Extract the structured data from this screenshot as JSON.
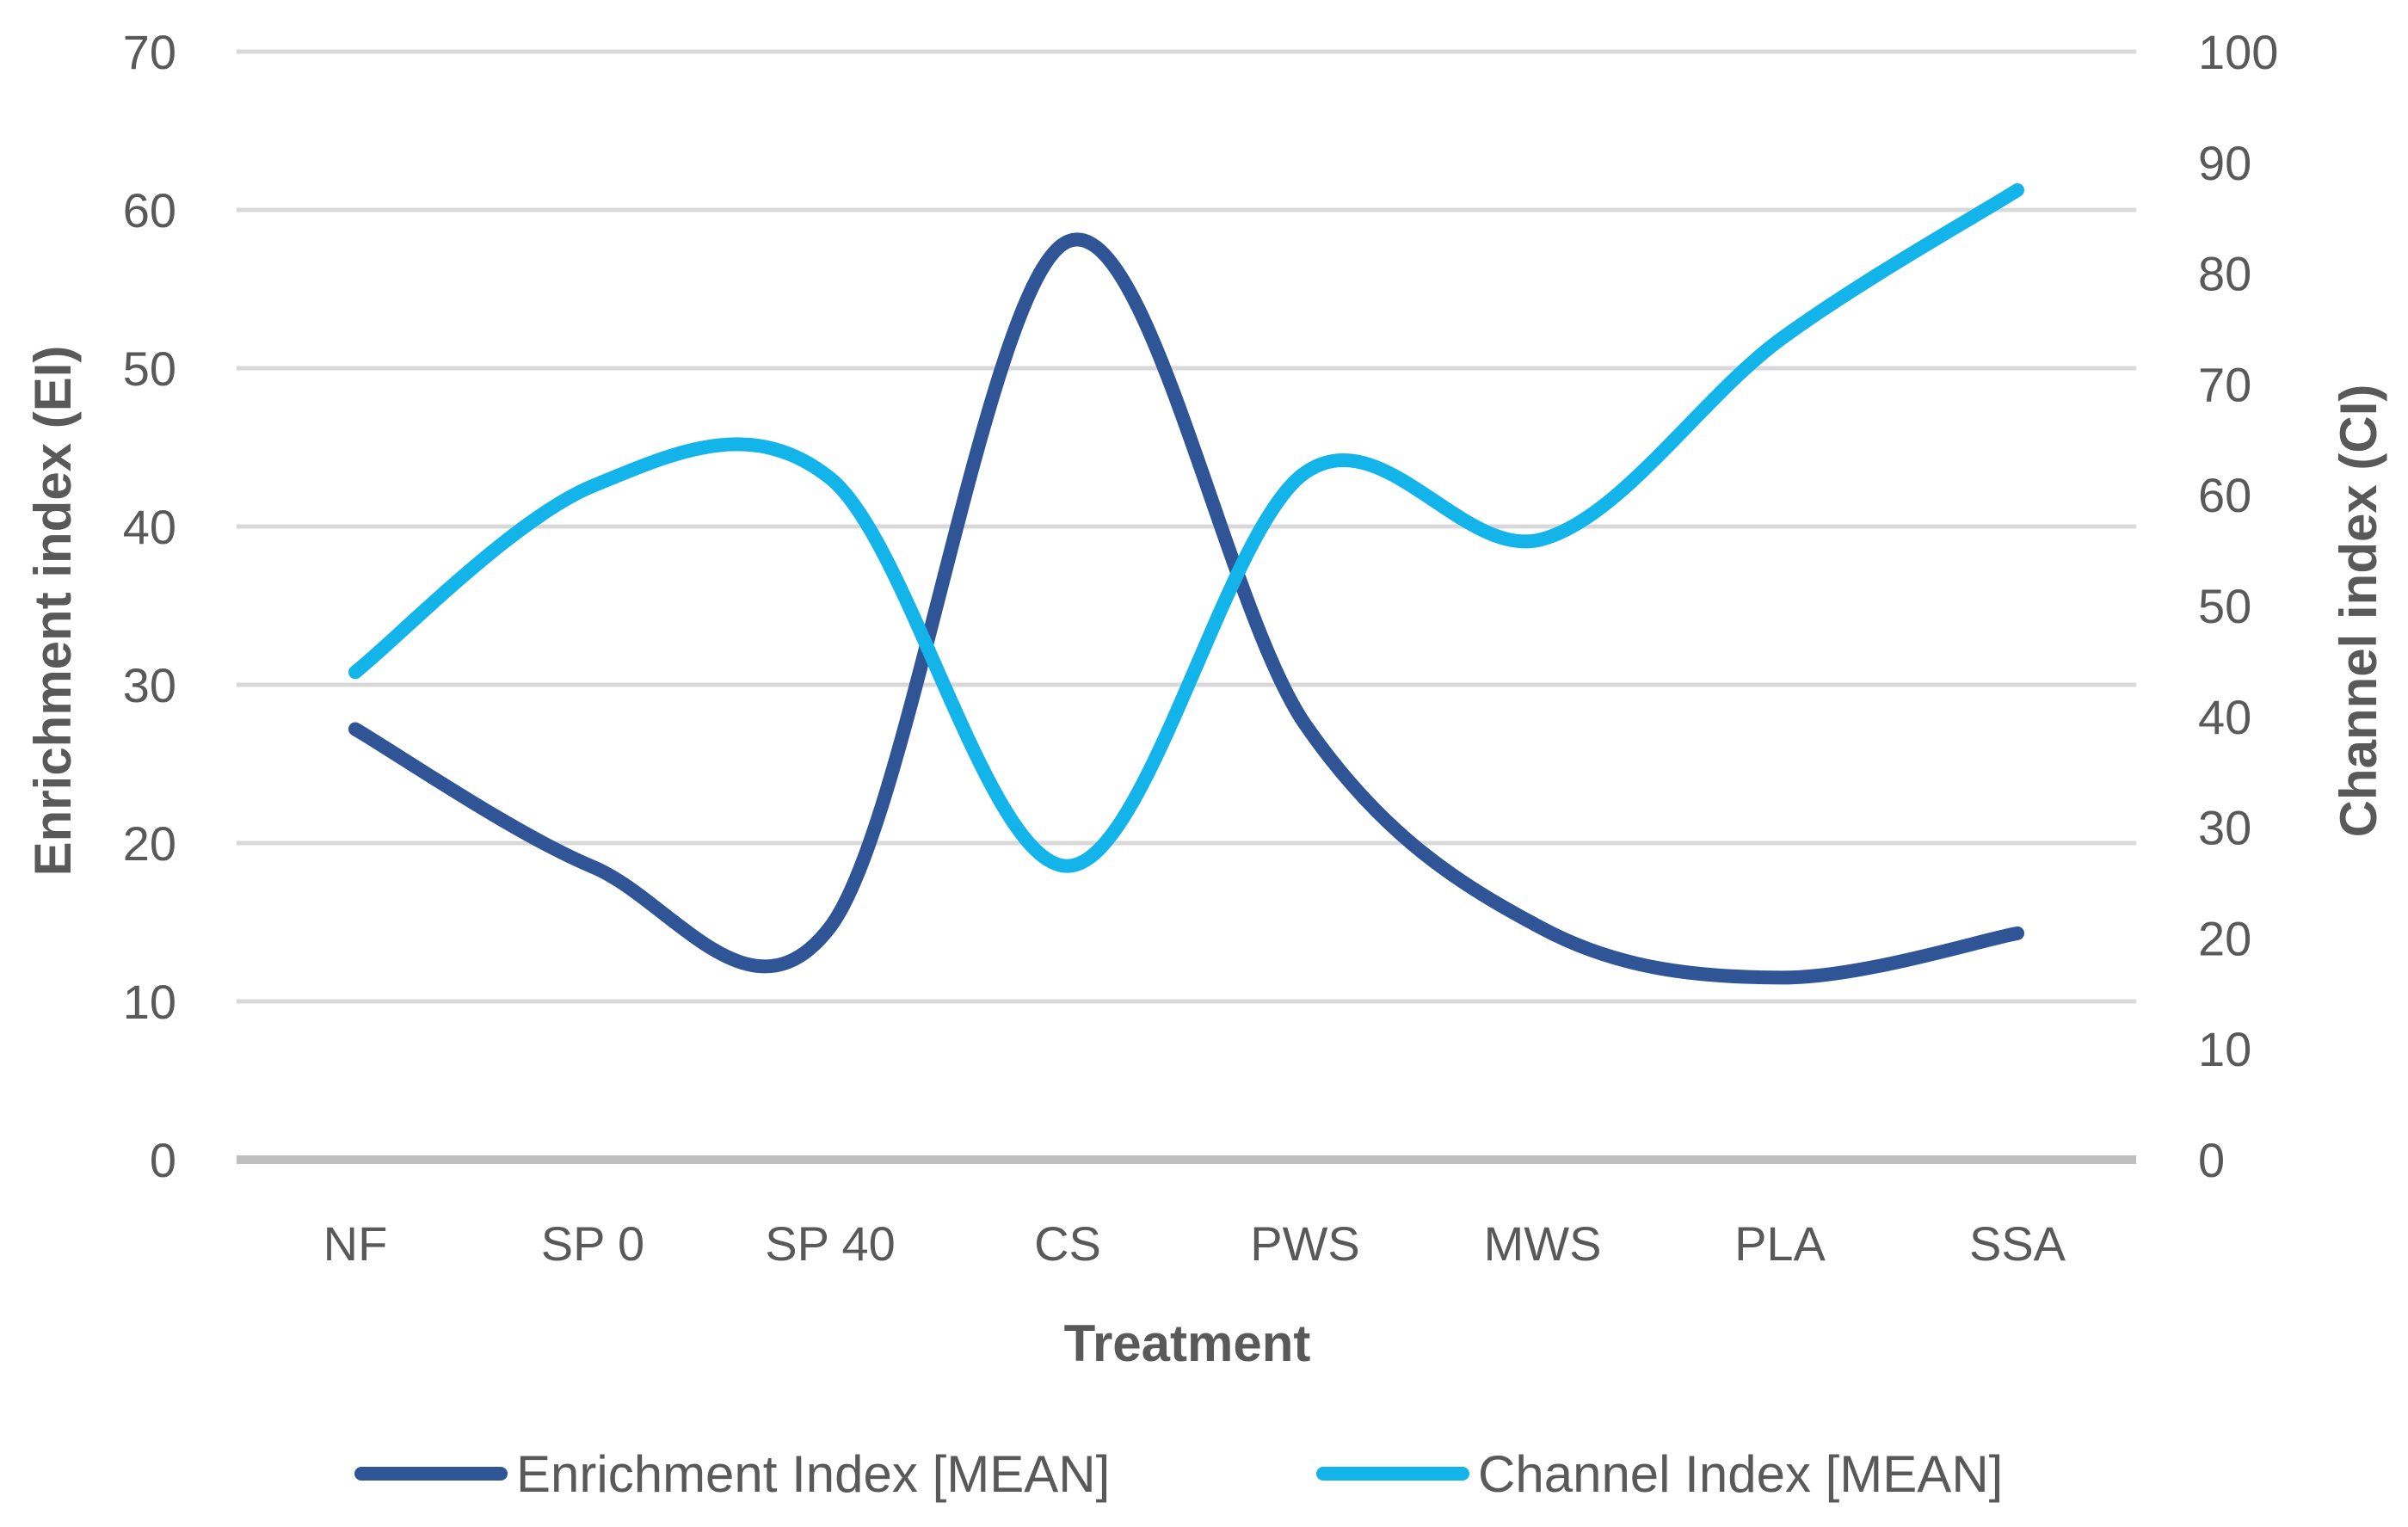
{
  "chart_data": {
    "type": "line",
    "title": "",
    "xlabel": "Treatment",
    "ylabel_left": "Enrichment index (EI)",
    "ylabel_right": "Channel index (CI)",
    "categories": [
      "NF",
      "SP 0",
      "SP 40",
      "CS",
      "PWS",
      "MWS",
      "PLA",
      "SSA"
    ],
    "ylim_left": [
      0,
      70
    ],
    "yticks_left": [
      0,
      10,
      20,
      30,
      40,
      50,
      60,
      70
    ],
    "ylim_right": [
      0,
      100
    ],
    "yticks_right": [
      0,
      10,
      20,
      30,
      40,
      50,
      60,
      70,
      80,
      90,
      100
    ],
    "grid": true,
    "legend_position": "bottom",
    "series": [
      {
        "name": "Enrichment Index [MEAN]",
        "axis": "left",
        "color": "#2f5597",
        "values": [
          27.2,
          18.5,
          14.7,
          58.0,
          27.5,
          14.6,
          11.5,
          14.3
        ]
      },
      {
        "name": "Channel Index [MEAN]",
        "axis": "right",
        "color": "#12b4ea",
        "values": [
          44.0,
          60.8,
          61.5,
          26.5,
          62.0,
          56.0,
          74.0,
          87.5
        ]
      }
    ]
  }
}
